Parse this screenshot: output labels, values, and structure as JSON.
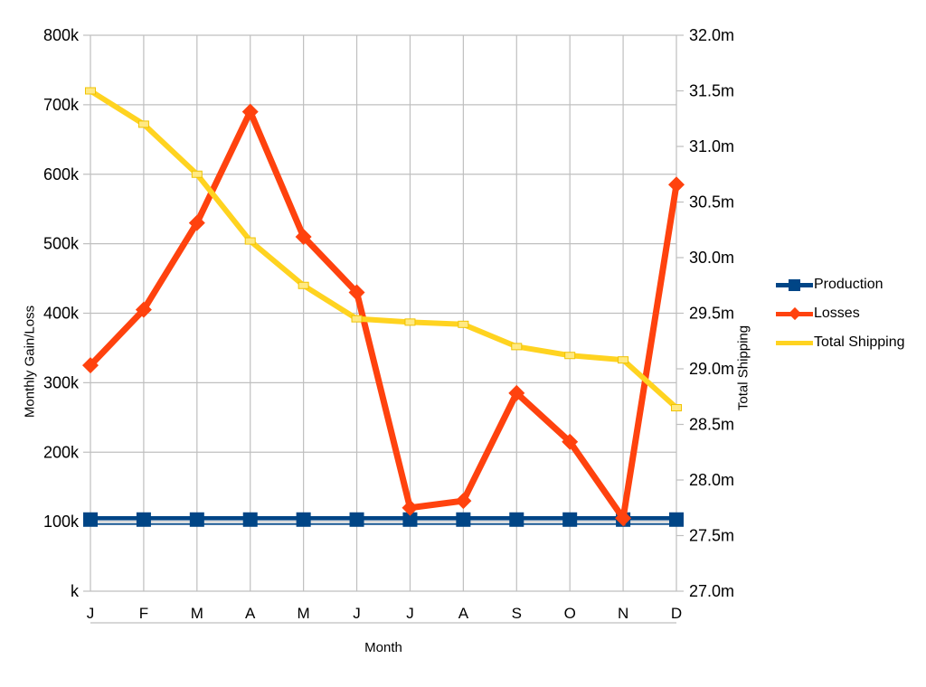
{
  "colors": {
    "background": "#ffffff",
    "grid": "#bfbfbf",
    "text": "#000000",
    "production_blue": "#004586",
    "losses_red": "#ff420e",
    "shipping_yellow": "#ffd320"
  },
  "chart_data": {
    "type": "line",
    "title": "",
    "xlabel": "Month",
    "categories": [
      "J",
      "F",
      "M",
      "A",
      "M",
      "J",
      "J",
      "A",
      "S",
      "O",
      "N",
      "D"
    ],
    "left_axis": {
      "title": "Monthly Gain/Loss",
      "min": 0,
      "max": 800,
      "unit": "k",
      "tick_labels": [
        "800k",
        "700k",
        "600k",
        "500k",
        "400k",
        "300k",
        "200k",
        "100k",
        "k"
      ]
    },
    "right_axis": {
      "title": "Total Shipping",
      "min": 27,
      "max": 32,
      "unit": "m",
      "tick_labels": [
        "32.0m",
        "31.5m",
        "31.0m",
        "30.5m",
        "30.0m",
        "29.5m",
        "29.0m",
        "28.5m",
        "28.0m",
        "27.5m",
        "27.0m"
      ]
    },
    "grid": true,
    "legend_position": "right",
    "series": [
      {
        "name": "Production",
        "axis": "left",
        "color": "#004586",
        "marker": "square",
        "line_style": "double",
        "values": [
          105,
          105,
          105,
          105,
          105,
          105,
          105,
          105,
          105,
          105,
          105,
          105
        ]
      },
      {
        "name": "Losses",
        "axis": "left",
        "color": "#ff420e",
        "marker": "diamond",
        "values": [
          325,
          405,
          530,
          690,
          510,
          430,
          120,
          130,
          285,
          215,
          105,
          585
        ]
      },
      {
        "name": "Total Shipping",
        "axis": "right",
        "color": "#ffd320",
        "marker": "dash",
        "marker_fill": "#ffe982",
        "marker_stroke": "#f0c300",
        "values": [
          31.5,
          31.2,
          30.75,
          30.15,
          29.75,
          29.45,
          29.42,
          29.4,
          29.2,
          29.12,
          29.08,
          28.65
        ]
      }
    ]
  }
}
